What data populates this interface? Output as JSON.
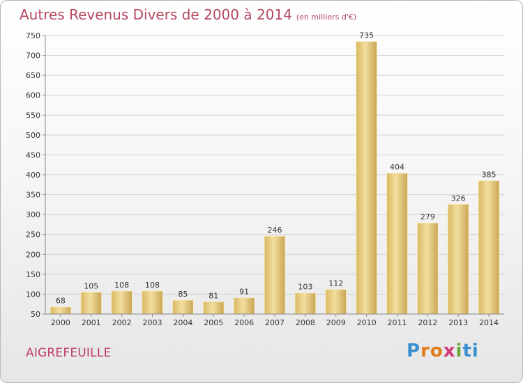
{
  "title": "Autres Revenus Divers de 2000 à 2014",
  "unit": "(en milliers d'€)",
  "commune": "AIGREFEUILLE",
  "brand": {
    "letters": [
      "P",
      "r",
      "o",
      "x",
      "i",
      "t",
      "i"
    ],
    "colors": [
      "#3a8fd0",
      "#e07b1a",
      "#e07b1a",
      "#d23a7a",
      "#6aa838",
      "#3a8fd0",
      "#3a8fd0"
    ]
  },
  "chart_data": {
    "type": "bar",
    "title": "Autres Revenus Divers de 2000 à 2014",
    "subtitle": "(en milliers d'€)",
    "categories": [
      "2000",
      "2001",
      "2002",
      "2003",
      "2004",
      "2005",
      "2006",
      "2007",
      "2008",
      "2009",
      "2010",
      "2011",
      "2012",
      "2013",
      "2014"
    ],
    "values": [
      68,
      105,
      108,
      108,
      85,
      81,
      91,
      246,
      103,
      112,
      735,
      404,
      279,
      326,
      385
    ],
    "ylim": [
      50,
      750
    ],
    "yticks": [
      50,
      100,
      150,
      200,
      250,
      300,
      350,
      400,
      450,
      500,
      550,
      600,
      650,
      700,
      750
    ],
    "grid": true,
    "bar_color": "#e8cf86"
  }
}
